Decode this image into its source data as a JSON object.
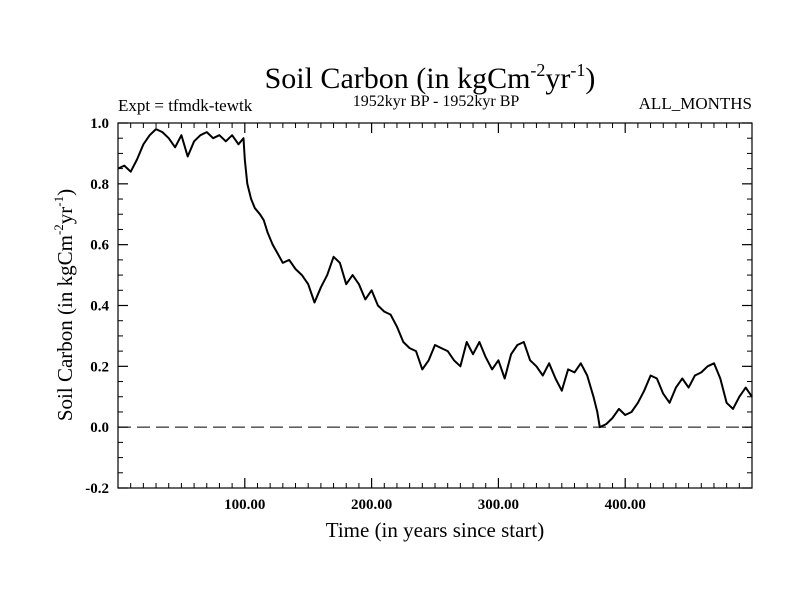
{
  "chart_data": {
    "type": "line",
    "title_main": "Soil Carbon (in kgCm",
    "title_sup1": "-2",
    "title_mid": "yr",
    "title_sup2": "-1",
    "title_end": ")",
    "expt_label": "Expt = tfmdk-tewtk",
    "period_label": "1952kyr BP - 1952kyr BP",
    "months_label": "ALL_MONTHS",
    "xlabel": "Time (in years since start)",
    "ylabel_main": "Soil Carbon (in kgCm",
    "ylabel_sup1": "-2",
    "ylabel_mid": "yr",
    "ylabel_sup2": "-1",
    "ylabel_end": ")",
    "xlim": [
      0,
      500
    ],
    "ylim": [
      -0.2,
      1.0
    ],
    "x_ticks": [
      100,
      200,
      300,
      400
    ],
    "x_tick_labels": [
      "100.00",
      "200.00",
      "300.00",
      "400.00"
    ],
    "y_ticks": [
      -0.2,
      0.0,
      0.2,
      0.4,
      0.6,
      0.8,
      1.0
    ],
    "y_tick_labels": [
      "-0.2",
      "0.0",
      "0.2",
      "0.4",
      "0.6",
      "0.8",
      "1.0"
    ],
    "zero_line": 0.0,
    "series": [
      {
        "name": "Soil Carbon",
        "x": [
          0,
          5,
          10,
          15,
          20,
          25,
          30,
          35,
          40,
          45,
          50,
          55,
          60,
          65,
          70,
          75,
          80,
          85,
          90,
          95,
          99,
          100,
          102,
          105,
          108,
          112,
          115,
          118,
          122,
          126,
          130,
          135,
          140,
          145,
          150,
          155,
          160,
          165,
          170,
          175,
          180,
          185,
          190,
          195,
          200,
          205,
          210,
          215,
          220,
          225,
          230,
          235,
          240,
          245,
          250,
          255,
          260,
          265,
          270,
          275,
          280,
          285,
          290,
          295,
          300,
          305,
          310,
          315,
          320,
          325,
          330,
          335,
          340,
          345,
          350,
          355,
          360,
          365,
          370,
          375,
          378,
          380,
          385,
          390,
          395,
          400,
          405,
          410,
          415,
          420,
          425,
          430,
          435,
          440,
          445,
          450,
          455,
          460,
          465,
          470,
          475,
          480,
          485,
          490,
          495,
          500
        ],
        "y": [
          0.85,
          0.86,
          0.84,
          0.88,
          0.93,
          0.96,
          0.98,
          0.97,
          0.95,
          0.92,
          0.96,
          0.89,
          0.94,
          0.96,
          0.97,
          0.95,
          0.96,
          0.94,
          0.96,
          0.93,
          0.95,
          0.88,
          0.8,
          0.75,
          0.72,
          0.7,
          0.68,
          0.64,
          0.6,
          0.57,
          0.54,
          0.55,
          0.52,
          0.5,
          0.47,
          0.41,
          0.46,
          0.5,
          0.56,
          0.54,
          0.47,
          0.5,
          0.47,
          0.42,
          0.45,
          0.4,
          0.38,
          0.37,
          0.33,
          0.28,
          0.26,
          0.25,
          0.19,
          0.22,
          0.27,
          0.26,
          0.25,
          0.22,
          0.2,
          0.28,
          0.24,
          0.28,
          0.23,
          0.19,
          0.22,
          0.16,
          0.24,
          0.27,
          0.28,
          0.22,
          0.2,
          0.17,
          0.21,
          0.16,
          0.12,
          0.19,
          0.18,
          0.21,
          0.17,
          0.1,
          0.05,
          0.0,
          0.01,
          0.03,
          0.06,
          0.04,
          0.05,
          0.08,
          0.12,
          0.17,
          0.16,
          0.11,
          0.08,
          0.13,
          0.16,
          0.13,
          0.17,
          0.18,
          0.2,
          0.21,
          0.16,
          0.08,
          0.06,
          0.1,
          0.13,
          0.1
        ]
      }
    ]
  }
}
